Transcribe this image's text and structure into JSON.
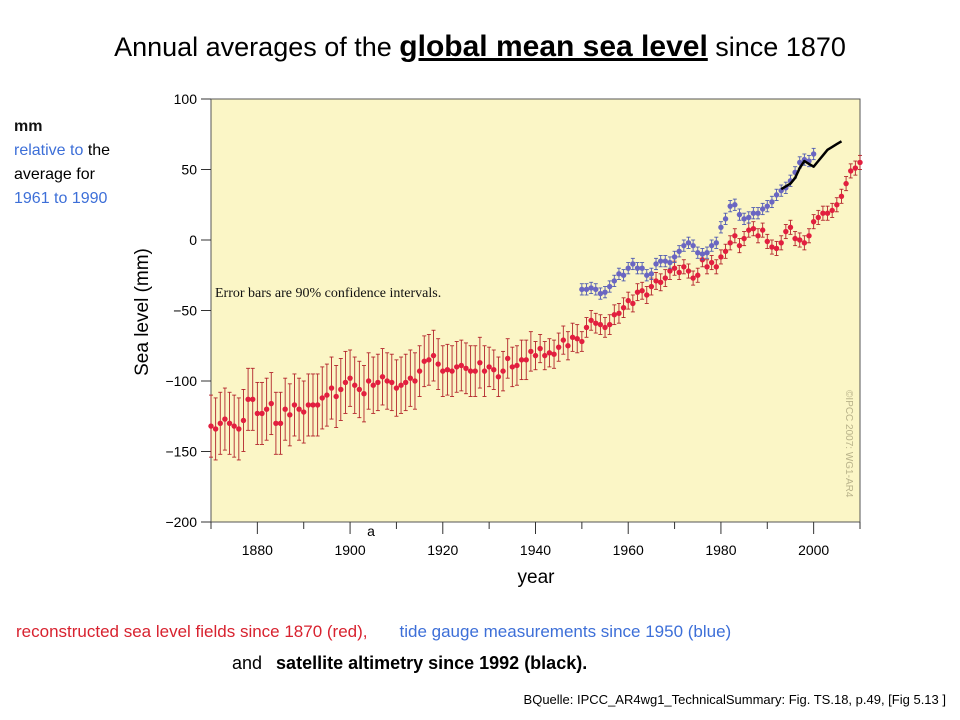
{
  "header": {
    "title_prefix": "Annual averages of the",
    "title_emphasis": "global mean sea level",
    "title_suffix": "since 1870"
  },
  "sidenote": {
    "unit": "mm",
    "relative": "relative to",
    "the": " the",
    "average_for": "average for",
    "period": "1961 to 1990"
  },
  "captions": {
    "red_text": "reconstructed sea level fields since 1870 (red),",
    "blue_text": "tide gauge measurements since 1950 (blue)",
    "and_text": "and",
    "black_text": "satellite altimetry since 1992 (black)."
  },
  "source": "BQuelle: IPCC_AR4wg1_TechnicalSummary: Fig. TS.18, p.49,    [Fig 5.13 ]",
  "colors": {
    "plot_bg": "#fbf6c6",
    "red_series": "#e21f3f",
    "red_error": "#b3262c",
    "blue_series": "#6a66c2",
    "blue_error": "#4f5bb0",
    "black_series": "#000000"
  },
  "chart_data": {
    "type": "scatter",
    "title": "",
    "xlabel": "year",
    "ylabel": "Sea level (mm)",
    "xlim": [
      1870,
      2010
    ],
    "ylim": [
      -200,
      100
    ],
    "x_ticks": [
      1880,
      1900,
      1920,
      1940,
      1960,
      1980,
      2000
    ],
    "y_ticks": [
      100,
      50,
      0,
      -50,
      -100,
      -150,
      -200
    ],
    "y_tick_labels": [
      "100",
      "50",
      "0",
      "−50",
      "−100",
      "−150",
      "−200"
    ],
    "annotation": "Error bars are 90% confidence intervals.",
    "panel_label": "a",
    "copyright": "©IPCC 2007: WG1-AR4",
    "series": [
      {
        "name": "reconstructed sea level fields (red)",
        "style": "points_with_errorbars",
        "start_year": 1870,
        "values": [
          -132,
          -134,
          -130,
          -127,
          -130,
          -132,
          -134,
          -128,
          -113,
          -113,
          -123,
          -123,
          -120,
          -116,
          -130,
          -130,
          -120,
          -124,
          -117,
          -120,
          -122,
          -117,
          -117,
          -117,
          -112,
          -110,
          -105,
          -111,
          -106,
          -101,
          -98,
          -103,
          -106,
          -109,
          -100,
          -103,
          -101,
          -97,
          -100,
          -101,
          -105,
          -103,
          -101,
          -98,
          -100,
          -93,
          -86,
          -85,
          -82,
          -88,
          -93,
          -92,
          -93,
          -90,
          -89,
          -91,
          -93,
          -93,
          -87,
          -93,
          -90,
          -92,
          -97,
          -93,
          -84,
          -90,
          -89,
          -85,
          -85,
          -79,
          -82,
          -77,
          -82,
          -80,
          -81,
          -76,
          -71,
          -75,
          -69,
          -70,
          -72,
          -62,
          -57,
          -59,
          -60,
          -62,
          -60,
          -53,
          -52,
          -48,
          -43,
          -45,
          -37,
          -36,
          -39,
          -33,
          -29,
          -30,
          -27,
          -22,
          -20,
          -23,
          -19,
          -22,
          -27,
          -25,
          -14,
          -19,
          -16,
          -19,
          -12,
          -8,
          -2,
          3,
          -4,
          1,
          7,
          8,
          3,
          7,
          -1,
          -5,
          -6,
          -2,
          6,
          9,
          1,
          0,
          -2,
          3,
          13,
          16,
          19,
          19,
          21,
          25,
          31,
          40,
          49,
          51,
          55
        ],
        "errors": [
          22,
          22,
          22,
          22,
          22,
          22,
          22,
          22,
          22,
          22,
          22,
          22,
          22,
          22,
          22,
          22,
          22,
          22,
          22,
          22,
          22,
          22,
          22,
          22,
          22,
          22,
          22,
          22,
          22,
          22,
          20,
          20,
          20,
          20,
          20,
          20,
          20,
          20,
          20,
          20,
          20,
          20,
          20,
          20,
          20,
          18,
          18,
          18,
          18,
          18,
          18,
          18,
          18,
          18,
          18,
          18,
          18,
          18,
          18,
          18,
          14,
          14,
          14,
          14,
          14,
          14,
          14,
          14,
          14,
          14,
          10,
          10,
          10,
          10,
          10,
          10,
          10,
          10,
          10,
          10,
          7,
          7,
          7,
          7,
          7,
          7,
          7,
          7,
          7,
          7,
          6,
          6,
          6,
          6,
          6,
          6,
          6,
          6,
          6,
          6,
          5,
          5,
          5,
          5,
          5,
          5,
          5,
          5,
          5,
          5,
          5,
          5,
          5,
          5,
          5,
          5,
          5,
          5,
          5,
          5,
          5,
          5,
          5,
          5,
          5,
          5,
          5,
          5,
          5,
          5,
          5,
          5,
          5,
          5,
          5,
          5,
          5,
          5,
          5,
          5,
          5
        ]
      },
      {
        "name": "tide gauge measurements (blue)",
        "style": "points_with_errorbars",
        "start_year": 1950,
        "values": [
          -35,
          -35,
          -34,
          -35,
          -38,
          -37,
          -33,
          -29,
          -24,
          -25,
          -20,
          -17,
          -20,
          -20,
          -25,
          -24,
          -17,
          -15,
          -15,
          -16,
          -12,
          -8,
          -4,
          -2,
          -4,
          -9,
          -10,
          -9,
          -4,
          -2,
          9,
          15,
          24,
          25,
          18,
          15,
          16,
          19,
          19,
          22,
          24,
          27,
          32,
          35,
          37,
          42,
          48,
          55,
          57,
          56,
          61
        ],
        "errors": [
          4,
          4,
          4,
          4,
          4,
          4,
          4,
          4,
          4,
          4,
          4,
          4,
          4,
          4,
          4,
          4,
          4,
          4,
          4,
          4,
          4,
          4,
          4,
          4,
          4,
          4,
          4,
          4,
          4,
          4,
          4,
          4,
          4,
          4,
          4,
          4,
          4,
          4,
          4,
          4,
          4,
          4,
          4,
          4,
          4,
          4,
          4,
          4,
          4,
          4,
          4
        ]
      },
      {
        "name": "satellite altimetry (black)",
        "style": "line",
        "x": [
          1993,
          1994,
          1995,
          1996,
          1997,
          1998,
          1999,
          2000,
          2001,
          2002,
          2003,
          2004,
          2005,
          2006
        ],
        "values": [
          36,
          38,
          40,
          44,
          51,
          56,
          54,
          52,
          56,
          60,
          64,
          66,
          68,
          70
        ]
      }
    ]
  }
}
